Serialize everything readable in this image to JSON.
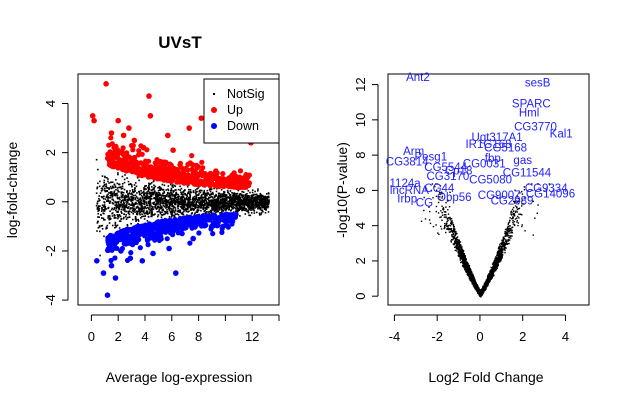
{
  "chart_data": [
    {
      "type": "scatter",
      "title": "UVsT",
      "xlabel": "Average log-expression",
      "ylabel": "log-fold-change",
      "xlim": [
        -1,
        14
      ],
      "ylim": [
        -4.2,
        5.2
      ],
      "x_ticks": [
        0,
        2,
        4,
        6,
        8,
        12
      ],
      "y_ticks": [
        -4,
        -2,
        0,
        2,
        4
      ],
      "legend_position": "top-right",
      "series": [
        {
          "name": "NotSig",
          "color": "#000000",
          "marker": "dot",
          "cloud": {
            "x_range": [
              0.3,
              13.2
            ],
            "description_points": 2600
          }
        },
        {
          "name": "Up",
          "color": "#ff0000",
          "marker": "circle",
          "points": [
            [
              1.1,
              4.8
            ],
            [
              0.2,
              3.3
            ],
            [
              0.1,
              3.5
            ],
            [
              4.3,
              4.3
            ],
            [
              2.8,
              3.0
            ],
            [
              2.0,
              3.3
            ],
            [
              8.2,
              3.4
            ],
            [
              7.3,
              3.0
            ],
            [
              7.9,
              1.4
            ],
            [
              11.9,
              2.4
            ],
            [
              3.9,
              2.2
            ],
            [
              5.7,
              2.7
            ],
            [
              4.4,
              3.5
            ],
            [
              6.1,
              2.1
            ],
            [
              2.4,
              2.7
            ],
            [
              1.5,
              2.8
            ],
            [
              3.2,
              2.5
            ]
          ]
        },
        {
          "name": "Down",
          "color": "#0000ff",
          "marker": "circle",
          "points": [
            [
              1.2,
              -3.8
            ],
            [
              0.4,
              -2.4
            ],
            [
              0.9,
              -2.9
            ],
            [
              1.8,
              -3.1
            ],
            [
              2.9,
              -2.3
            ],
            [
              3.8,
              -2.4
            ],
            [
              6.3,
              -2.9
            ],
            [
              4.6,
              -2.1
            ],
            [
              5.8,
              -1.9
            ],
            [
              7.6,
              -1.5
            ],
            [
              2.2,
              -2.0
            ],
            [
              1.5,
              -2.6
            ]
          ]
        }
      ]
    },
    {
      "type": "scatter",
      "title": "",
      "xlabel": "Log2 Fold Change",
      "ylabel": "-log10(P-value)",
      "xlim": [
        -4.3,
        5.1
      ],
      "ylim": [
        -0.5,
        12.6
      ],
      "x_ticks": [
        -4,
        -2,
        0,
        2,
        4
      ],
      "y_ticks": [
        0,
        2,
        4,
        6,
        8,
        10,
        12
      ],
      "series": [
        {
          "name": "",
          "color": "#000000",
          "marker": "dot",
          "volcano": {
            "description_points": 2400
          }
        }
      ],
      "gene_labels": [
        {
          "text": "Ant2",
          "x": -2.9,
          "y": 12.2
        },
        {
          "text": "sesB",
          "x": 2.7,
          "y": 11.9
        },
        {
          "text": "SPARC",
          "x": 2.4,
          "y": 10.7
        },
        {
          "text": "Hml",
          "x": 2.3,
          "y": 10.2
        },
        {
          "text": "CG3770",
          "x": 2.6,
          "y": 9.4
        },
        {
          "text": "Kal1",
          "x": 3.8,
          "y": 9.0
        },
        {
          "text": "Ugt317A1",
          "x": 0.8,
          "y": 8.8
        },
        {
          "text": "IR1G168",
          "x": 0.4,
          "y": 8.4
        },
        {
          "text": "CG5168",
          "x": 1.2,
          "y": 8.2
        },
        {
          "text": "Arm",
          "x": -3.1,
          "y": 8.0
        },
        {
          "text": "Pesg1",
          "x": -2.3,
          "y": 7.7
        },
        {
          "text": "fbp",
          "x": 0.6,
          "y": 7.6
        },
        {
          "text": "gas",
          "x": 2.0,
          "y": 7.5
        },
        {
          "text": "CG3814",
          "x": -3.4,
          "y": 7.4
        },
        {
          "text": "CG0031",
          "x": 0.2,
          "y": 7.3
        },
        {
          "text": "CG5544",
          "x": -1.6,
          "y": 7.1
        },
        {
          "text": "CG11544",
          "x": 2.2,
          "y": 6.8
        },
        {
          "text": "Cp18",
          "x": -1.0,
          "y": 6.9
        },
        {
          "text": "CG3170",
          "x": -1.5,
          "y": 6.6
        },
        {
          "text": "CG5080",
          "x": 0.5,
          "y": 6.4
        },
        {
          "text": "1124a",
          "x": -3.5,
          "y": 6.2
        },
        {
          "text": "lncRNA",
          "x": -3.3,
          "y": 5.8
        },
        {
          "text": "CG44",
          "x": -1.9,
          "y": 5.9
        },
        {
          "text": "CG9334",
          "x": 3.1,
          "y": 5.9
        },
        {
          "text": "CG14096",
          "x": 3.3,
          "y": 5.6
        },
        {
          "text": "Obp56",
          "x": -1.2,
          "y": 5.4
        },
        {
          "text": "CG9007",
          "x": 0.9,
          "y": 5.5
        },
        {
          "text": "Irbp",
          "x": -3.4,
          "y": 5.3
        },
        {
          "text": "CG",
          "x": -2.6,
          "y": 5.1
        },
        {
          "text": "CG2989",
          "x": 1.5,
          "y": 5.2
        }
      ]
    }
  ]
}
